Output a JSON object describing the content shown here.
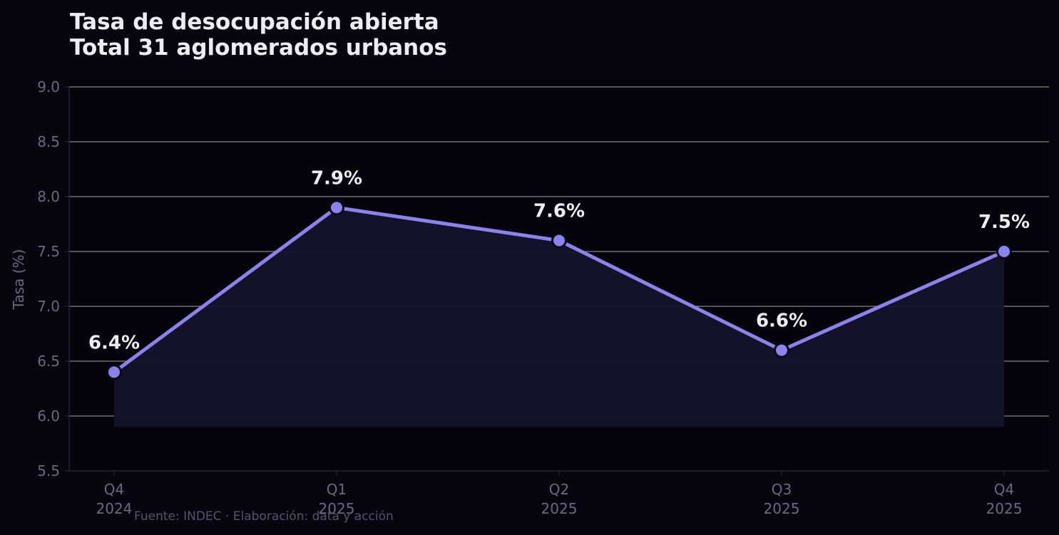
{
  "chart_data": {
    "type": "line",
    "title": [
      "Tasa de desocupación abierta",
      "Total 31 aglomerados urbanos"
    ],
    "ylabel": "Tasa (%)",
    "xlabel": "",
    "categories": [
      [
        "Q4",
        "2024"
      ],
      [
        "Q1",
        "2025"
      ],
      [
        "Q2",
        "2025"
      ],
      [
        "Q3",
        "2025"
      ],
      [
        "Q4",
        "2025"
      ]
    ],
    "values": [
      6.4,
      7.9,
      7.6,
      6.6,
      7.5
    ],
    "data_labels": [
      "6.4%",
      "7.9%",
      "7.6%",
      "6.6%",
      "7.5%"
    ],
    "ylim": [
      5.5,
      9.0
    ],
    "yticks": [
      "5.5",
      "6.0",
      "6.5",
      "7.0",
      "7.5",
      "8.0",
      "8.5",
      "9.0"
    ],
    "fill_baseline": 5.9,
    "grid": "horizontal",
    "legend": "none"
  },
  "source": "Fuente: INDEC · Elaboración: data y acción",
  "colors": {
    "background": "#07060f",
    "plot_background": "#05040b",
    "line": "#8b82ee",
    "fill": "#15132a",
    "grid": "#ffffff",
    "text": "#ecebf6",
    "muted": "#6a687c"
  }
}
